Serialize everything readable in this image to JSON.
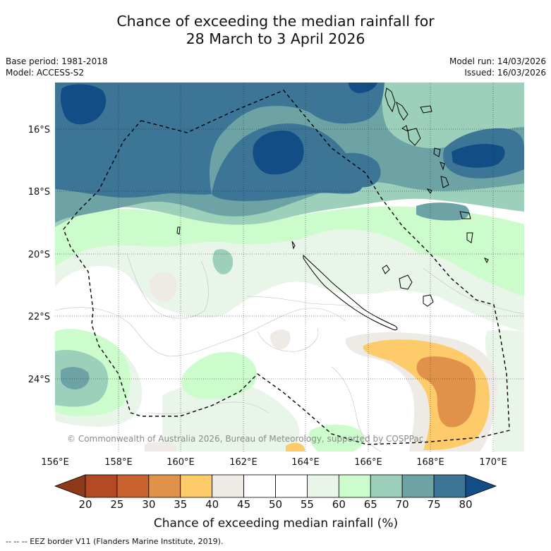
{
  "title": {
    "line1": "Chance of exceeding the median rainfall for",
    "line2": "28 March to 3 April 2026"
  },
  "meta": {
    "base_period": "Base period: 1981-2018",
    "model": "Model: ACCESS-S2",
    "model_run": "Model run: 14/03/2026",
    "issued": "Issued: 16/03/2026"
  },
  "map": {
    "lat_labels": [
      "16°S",
      "18°S",
      "20°S",
      "22°S",
      "24°S"
    ],
    "lon_labels": [
      "156°E",
      "158°E",
      "160°E",
      "162°E",
      "164°E",
      "166°E",
      "168°E",
      "170°E"
    ],
    "attribution": "© Commonwealth of Australia 2026, Bureau of Meteorology, supported by COSPPac"
  },
  "colorbar": {
    "ticks": [
      "20",
      "25",
      "30",
      "35",
      "40",
      "45",
      "50",
      "55",
      "60",
      "65",
      "70",
      "75",
      "80"
    ],
    "colors": [
      "#b34a24",
      "#c9622f",
      "#e0924a",
      "#fdcb6a",
      "#eeebe7",
      "#ffffff",
      "#ffffff",
      "#eaf5ea",
      "#ccfbcc",
      "#9dd0bb",
      "#6ea3a6",
      "#3d7597"
    ],
    "low_color": "#8e3a1a",
    "high_color": "#134d85",
    "label": "Chance of exceeding median rainfall (%)"
  },
  "palette": {
    "p20_25": "#b34a24",
    "p25_30": "#c9622f",
    "p30_35": "#e0924a",
    "p35_40": "#fdcb6a",
    "p40_45": "#eeebe7",
    "p45_55": "#ffffff",
    "p55_60": "#eaf5ea",
    "p60_65": "#ccfbcc",
    "p65_70": "#9dd0bb",
    "p70_75": "#6ea3a6",
    "p75_80": "#3d7597",
    "p80": "#134d85"
  },
  "legend_footer": "--  --  -- EEZ border V11 (Flanders Marine Institute, 2019)."
}
